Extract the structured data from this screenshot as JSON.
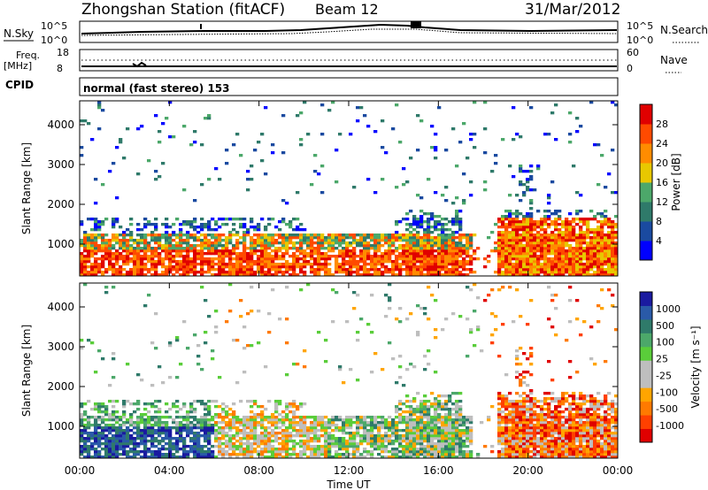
{
  "header": {
    "title": "Zhongshan Station (fitACF)",
    "beam": "Beam 12",
    "date": "31/Mar/2012"
  },
  "top_panels": {
    "nsky_label": "N.Sky",
    "nsearch_label": "N.Search",
    "nsky_ticks": [
      "10^5",
      "10^0"
    ],
    "nsearch_ticks": [
      "10^5",
      "10^0"
    ],
    "freq_label": "Freq.",
    "freq_unit": "[MHz]",
    "freq_ticks": [
      "18",
      "8"
    ],
    "nave_label": "Nave",
    "nave_ticks": [
      "60",
      "0"
    ],
    "cpid_label": "CPID",
    "cpid_value": "normal (fast stereo) 153"
  },
  "colors": {
    "power_scale": [
      "#0000ff",
      "#1a4aa0",
      "#2f7a6a",
      "#4ca86a",
      "#e8c800",
      "#ff8c00",
      "#ff4a00",
      "#e00000"
    ],
    "velocity_scale": [
      "#1a1aa0",
      "#2a5aa8",
      "#2f7a6a",
      "#4ca86a",
      "#5acd3a",
      "#bebebe",
      "#bebebe",
      "#ffa500",
      "#ff7a00",
      "#ff4000",
      "#e00000"
    ]
  },
  "chart_data": [
    {
      "type": "heatmap",
      "name": "power",
      "ylabel": "Slant Range [km]",
      "yticks": [
        "1000",
        "2000",
        "3000",
        "4000"
      ],
      "ylim": [
        200,
        4600
      ],
      "colorbar_label": "Power [dB]",
      "colorbar_ticks": [
        "4",
        "8",
        "12",
        "16",
        "20",
        "24",
        "28"
      ],
      "colorbar_range": [
        0,
        32
      ]
    },
    {
      "type": "heatmap",
      "name": "velocity",
      "ylabel": "Slant Range [km]",
      "yticks": [
        "1000",
        "2000",
        "3000",
        "4000"
      ],
      "ylim": [
        200,
        4600
      ],
      "colorbar_label": "Velocity [m s⁻¹]",
      "colorbar_ticks": [
        "1000",
        "500",
        "100",
        "25",
        "-25",
        "-100",
        "-500",
        "-1000"
      ]
    }
  ],
  "xaxis": {
    "label": "Time UT",
    "ticks": [
      "00:00",
      "04:00",
      "08:00",
      "12:00",
      "16:00",
      "20:00",
      "00:00"
    ]
  }
}
